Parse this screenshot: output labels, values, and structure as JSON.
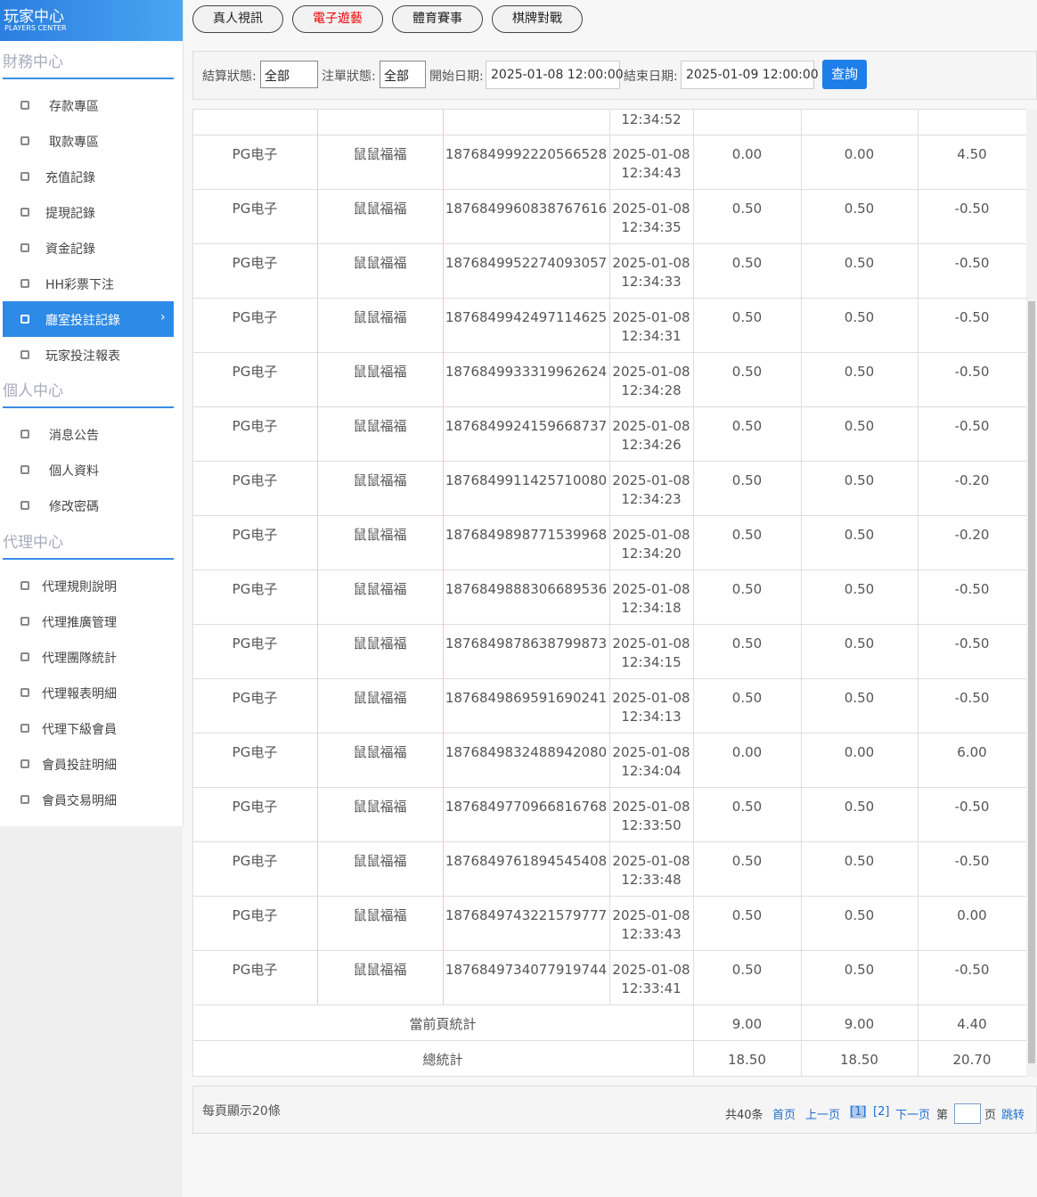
{
  "header": {
    "title": "玩家中心",
    "subtitle": "PLAYERS CENTER"
  },
  "tabs": [
    "真人視訊",
    "電子遊藝",
    "體育賽事",
    "棋牌對戰"
  ],
  "sidebar": [
    {
      "title": "財務中心",
      "items": [
        "存款專區",
        "取款專區",
        "充值記錄",
        "提現記錄",
        "資金記錄",
        "HH彩票下注",
        "廳室投註記錄",
        "玩家投注報表"
      ]
    },
    {
      "title": "個人中心",
      "items": [
        "消息公告",
        "個人資料",
        "修改密碼"
      ]
    },
    {
      "title": "代理中心",
      "items": [
        "代理規則說明",
        "代理推廣管理",
        "代理團隊統計",
        "代理報表明細",
        "代理下級會員",
        "會員投註明細",
        "會員交易明細"
      ]
    }
  ],
  "filters": {
    "settle_label": "結算狀態:",
    "settle_value": "全部",
    "order_label": "注單狀態:",
    "order_value": "全部",
    "start_label": "開始日期:",
    "start_value": "2025-01-08 12:00:00",
    "end_label": "結束日期:",
    "end_value": "2025-01-09 12:00:00",
    "button": "查詢"
  },
  "table": {
    "partial_time": "12:34:52",
    "rows": [
      [
        "PG电子",
        "鼠鼠福福",
        "1876849992220566528",
        "2025-01-08",
        "12:34:43",
        "0.00",
        "0.00",
        "4.50"
      ],
      [
        "PG电子",
        "鼠鼠福福",
        "1876849960838767616",
        "2025-01-08",
        "12:34:35",
        "0.50",
        "0.50",
        "-0.50"
      ],
      [
        "PG电子",
        "鼠鼠福福",
        "1876849952274093057",
        "2025-01-08",
        "12:34:33",
        "0.50",
        "0.50",
        "-0.50"
      ],
      [
        "PG电子",
        "鼠鼠福福",
        "1876849942497114625",
        "2025-01-08",
        "12:34:31",
        "0.50",
        "0.50",
        "-0.50"
      ],
      [
        "PG电子",
        "鼠鼠福福",
        "1876849933319962624",
        "2025-01-08",
        "12:34:28",
        "0.50",
        "0.50",
        "-0.50"
      ],
      [
        "PG电子",
        "鼠鼠福福",
        "1876849924159668737",
        "2025-01-08",
        "12:34:26",
        "0.50",
        "0.50",
        "-0.50"
      ],
      [
        "PG电子",
        "鼠鼠福福",
        "1876849911425710080",
        "2025-01-08",
        "12:34:23",
        "0.50",
        "0.50",
        "-0.20"
      ],
      [
        "PG电子",
        "鼠鼠福福",
        "1876849898771539968",
        "2025-01-08",
        "12:34:20",
        "0.50",
        "0.50",
        "-0.20"
      ],
      [
        "PG电子",
        "鼠鼠福福",
        "1876849888306689536",
        "2025-01-08",
        "12:34:18",
        "0.50",
        "0.50",
        "-0.50"
      ],
      [
        "PG电子",
        "鼠鼠福福",
        "1876849878638799873",
        "2025-01-08",
        "12:34:15",
        "0.50",
        "0.50",
        "-0.50"
      ],
      [
        "PG电子",
        "鼠鼠福福",
        "1876849869591690241",
        "2025-01-08",
        "12:34:13",
        "0.50",
        "0.50",
        "-0.50"
      ],
      [
        "PG电子",
        "鼠鼠福福",
        "1876849832488942080",
        "2025-01-08",
        "12:34:04",
        "0.00",
        "0.00",
        "6.00"
      ],
      [
        "PG电子",
        "鼠鼠福福",
        "1876849770966816768",
        "2025-01-08",
        "12:33:50",
        "0.50",
        "0.50",
        "-0.50"
      ],
      [
        "PG电子",
        "鼠鼠福福",
        "1876849761894545408",
        "2025-01-08",
        "12:33:48",
        "0.50",
        "0.50",
        "-0.50"
      ],
      [
        "PG电子",
        "鼠鼠福福",
        "1876849743221579777",
        "2025-01-08",
        "12:33:43",
        "0.50",
        "0.50",
        "0.00"
      ],
      [
        "PG电子",
        "鼠鼠福福",
        "1876849734077919744",
        "2025-01-08",
        "12:33:41",
        "0.50",
        "0.50",
        "-0.50"
      ]
    ],
    "page_total": {
      "label": "當前頁統計",
      "values": [
        "9.00",
        "9.00",
        "4.40"
      ]
    },
    "grand_total": {
      "label": "總統計",
      "values": [
        "18.50",
        "18.50",
        "20.70"
      ]
    }
  },
  "pagination": {
    "per_page": "每頁顯示20條",
    "total": "共40条",
    "first": "首页",
    "prev": "上一页",
    "pages": [
      "[1]",
      "[2]"
    ],
    "next": "下一页",
    "goto_prefix": "第",
    "goto_suffix": "页",
    "jump": "跳转"
  }
}
